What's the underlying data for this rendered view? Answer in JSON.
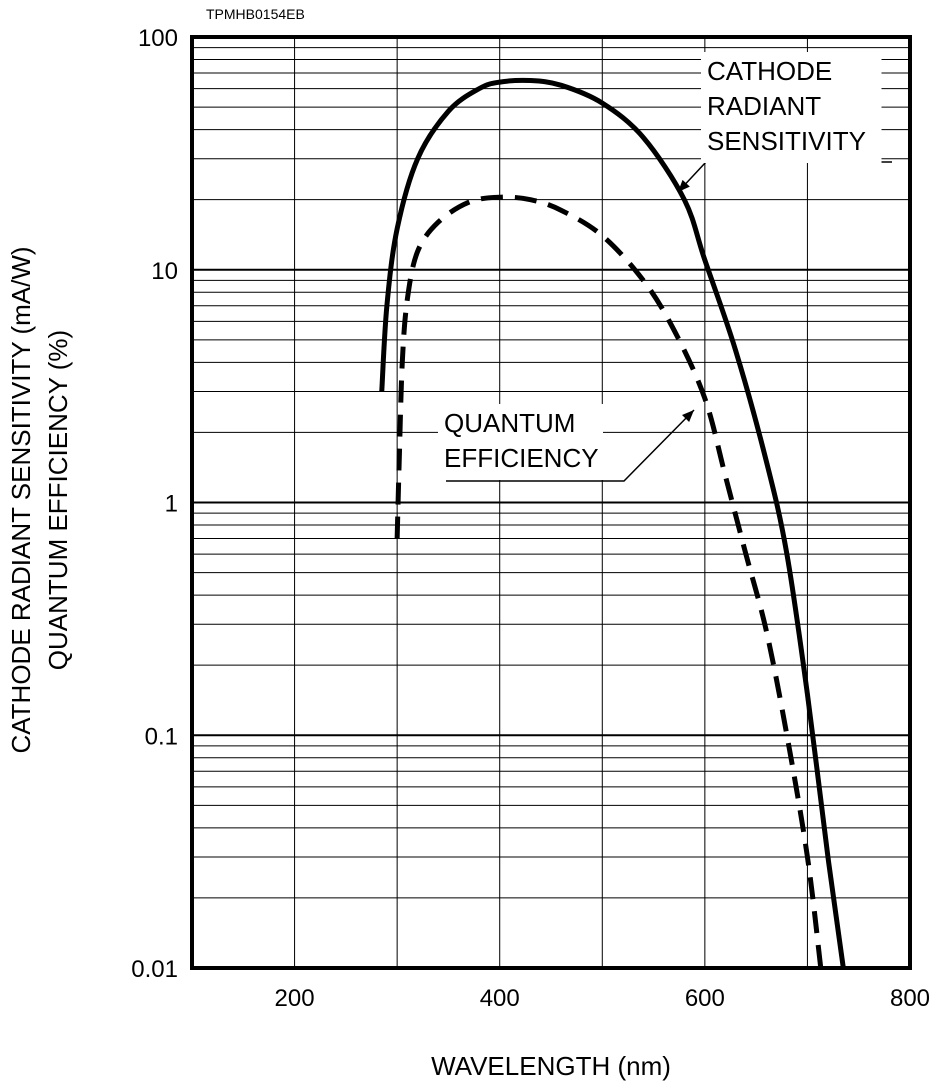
{
  "figure_code": "TPMHB0154EB",
  "chart_data": {
    "type": "line",
    "xlabel": "WAVELENGTH (nm)",
    "ylabel_lines": [
      "CATHODE RADIANT SENSITIVITY (mA/W)",
      "QUANTUM EFFICIENCY (%)"
    ],
    "xlim": [
      100,
      800
    ],
    "ylim": [
      0.01,
      100
    ],
    "yscale": "log",
    "grid": true,
    "x_ticks": [
      {
        "value": 200,
        "label": "200"
      },
      {
        "value": 400,
        "label": "400"
      },
      {
        "value": 600,
        "label": "600"
      },
      {
        "value": 800,
        "label": "800"
      }
    ],
    "y_ticks": [
      {
        "value": 0.01,
        "label": "0.01"
      },
      {
        "value": 0.1,
        "label": "0.1"
      },
      {
        "value": 1,
        "label": "1"
      },
      {
        "value": 10,
        "label": "10"
      },
      {
        "value": 100,
        "label": "100"
      }
    ],
    "series": [
      {
        "name": "CATHODE RADIANT SENSITIVITY",
        "label_lines": [
          "CATHODE",
          "RADIANT",
          "SENSITIVITY"
        ],
        "style": "solid",
        "x": [
          285,
          290,
          300,
          320,
          350,
          380,
          400,
          430,
          460,
          500,
          540,
          580,
          600,
          630,
          660,
          680,
          700,
          720,
          735
        ],
        "y": [
          3.0,
          7,
          15,
          30,
          48,
          60,
          64,
          65,
          62,
          52,
          37,
          20,
          11,
          4.5,
          1.5,
          0.6,
          0.15,
          0.03,
          0.01
        ]
      },
      {
        "name": "QUANTUM EFFICIENCY",
        "label_lines": [
          "QUANTUM",
          "EFFICIENCY"
        ],
        "style": "dashed",
        "x": [
          300,
          302,
          305,
          310,
          320,
          340,
          370,
          400,
          430,
          460,
          500,
          540,
          570,
          600,
          620,
          640,
          660,
          680,
          700,
          713
        ],
        "y": [
          0.7,
          1.5,
          4,
          7.5,
          12,
          16,
          19.5,
          20.5,
          20,
          18,
          14,
          9,
          5.5,
          2.8,
          1.3,
          0.6,
          0.28,
          0.1,
          0.03,
          0.01
        ]
      }
    ]
  }
}
